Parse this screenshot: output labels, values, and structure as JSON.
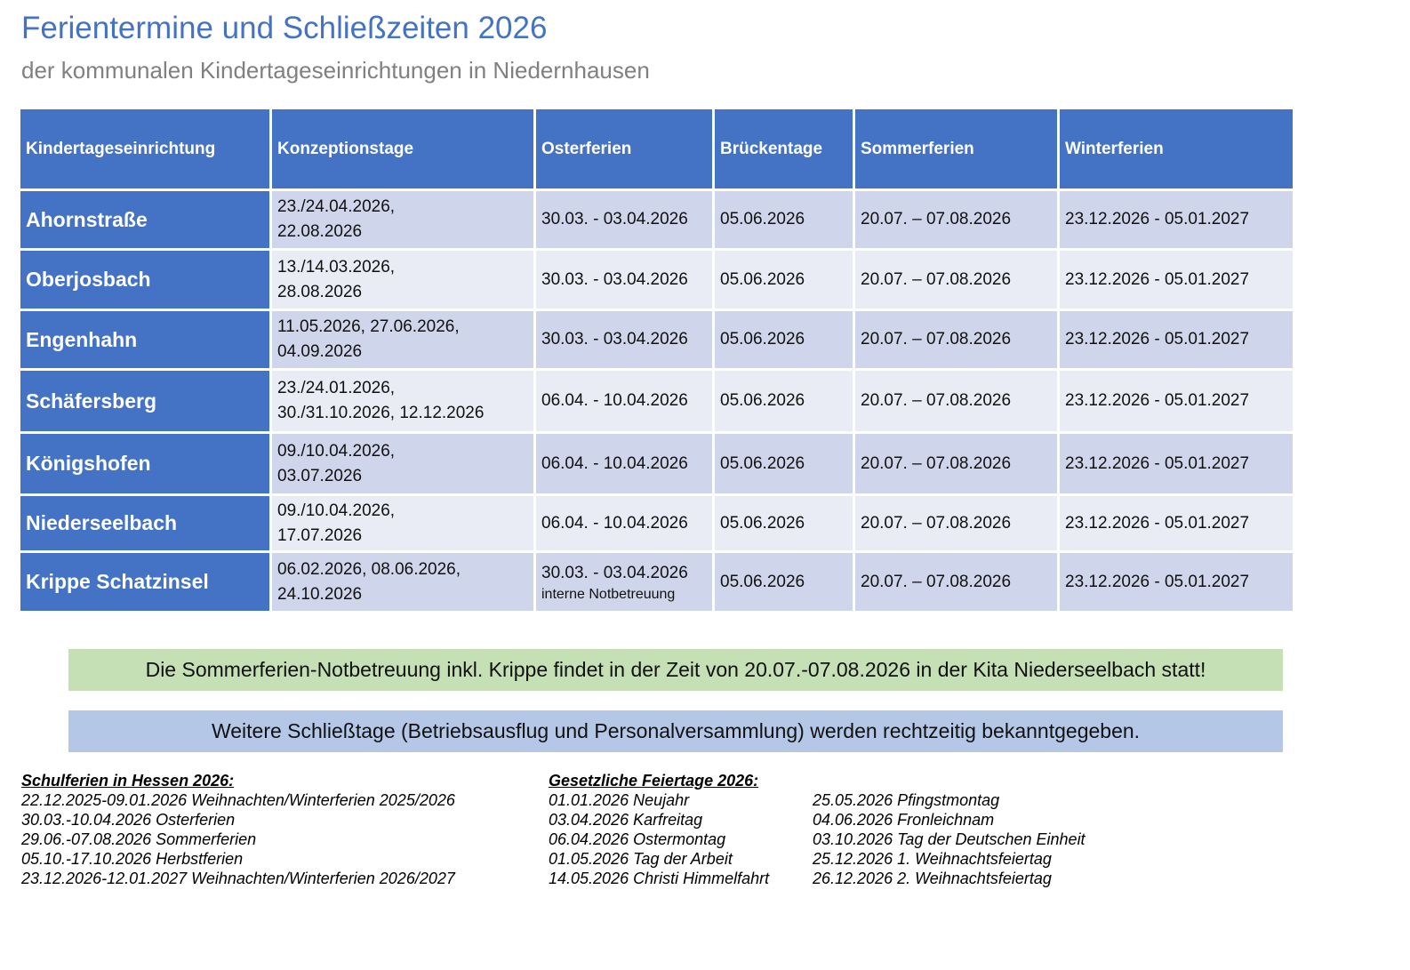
{
  "title": "Ferientermine und Schließzeiten 2026",
  "subtitle": "der kommunalen Kindertageseinrichtungen in Niedernhausen",
  "table": {
    "headers": [
      "Kindertageseinrichtung",
      "Konzeptionstage",
      "Osterferien",
      "Brückentage",
      "Sommerferien",
      "Winterferien"
    ],
    "rows": [
      {
        "name": "Ahornstraße",
        "konzeption_1": "23./24.04.2026,",
        "konzeption_2": "22.08.2026",
        "ostern": "30.03. - 03.04.2026",
        "ostern_note": "",
        "bruecke": "05.06.2026",
        "sommer": "20.07. – 07.08.2026",
        "winter": "23.12.2026 - 05.01.2027"
      },
      {
        "name": "Oberjosbach",
        "konzeption_1": "13./14.03.2026,",
        "konzeption_2": "28.08.2026",
        "ostern": "30.03. - 03.04.2026",
        "ostern_note": "",
        "bruecke": "05.06.2026",
        "sommer": "20.07. – 07.08.2026",
        "winter": "23.12.2026 - 05.01.2027"
      },
      {
        "name": "Engenhahn",
        "konzeption_1": "11.05.2026, 27.06.2026,",
        "konzeption_2": "04.09.2026",
        "ostern": "30.03. - 03.04.2026",
        "ostern_note": "",
        "bruecke": "05.06.2026",
        "sommer": "20.07. – 07.08.2026",
        "winter": "23.12.2026 - 05.01.2027"
      },
      {
        "name": "Schäfersberg",
        "konzeption_1": "23./24.01.2026,",
        "konzeption_2": "30./31.10.2026, 12.12.2026",
        "ostern": "06.04. - 10.04.2026",
        "ostern_note": "",
        "bruecke": "05.06.2026",
        "sommer": "20.07. – 07.08.2026",
        "winter": "23.12.2026 - 05.01.2027"
      },
      {
        "name": "Königshofen",
        "konzeption_1": "09./10.04.2026,",
        "konzeption_2": "03.07.2026",
        "ostern": "06.04. - 10.04.2026",
        "ostern_note": "",
        "bruecke": "05.06.2026",
        "sommer": "20.07. – 07.08.2026",
        "winter": "23.12.2026 - 05.01.2027"
      },
      {
        "name": "Niederseelbach",
        "konzeption_1": "09./10.04.2026,",
        "konzeption_2": "17.07.2026",
        "ostern": "06.04. - 10.04.2026",
        "ostern_note": "",
        "bruecke": "05.06.2026",
        "sommer": "20.07. – 07.08.2026",
        "winter": "23.12.2026 - 05.01.2027"
      },
      {
        "name": "Krippe Schatzinsel",
        "konzeption_1": "06.02.2026, 08.06.2026,",
        "konzeption_2": "24.10.2026",
        "ostern": "30.03. - 03.04.2026",
        "ostern_note": "interne Notbetreuung",
        "bruecke": "05.06.2026",
        "sommer": "20.07. – 07.08.2026",
        "winter": "23.12.2026 - 05.01.2027"
      }
    ]
  },
  "banner_green": "Die Sommerferien-Notbetreuung inkl. Krippe findet in der Zeit von 20.07.-07.08.2026 in der Kita Niederseelbach statt!",
  "banner_blue": "Weitere Schließtage (Betriebsausflug und Personalversammlung) werden rechtzeitig bekanntgegeben.",
  "schulferien": {
    "heading": "Schulferien in Hessen 2026:",
    "items": [
      "22.12.2025-09.01.2026 Weihnachten/Winterferien 2025/2026",
      "30.03.-10.04.2026 Osterferien",
      "29.06.-07.08.2026 Sommerferien",
      "05.10.-17.10.2026 Herbstferien",
      "23.12.2026-12.01.2027 Weihnachten/Winterferien 2026/2027"
    ]
  },
  "feiertage": {
    "heading": "Gesetzliche Feiertage 2026:",
    "col1": [
      "01.01.2026 Neujahr",
      "03.04.2026 Karfreitag",
      "06.04.2026 Ostermontag",
      "01.05.2026 Tag der Arbeit",
      "14.05.2026 Christi Himmelfahrt"
    ],
    "col2": [
      "25.05.2026 Pfingstmontag",
      "04.06.2026 Fronleichnam",
      "03.10.2026 Tag der Deutschen Einheit",
      "25.12.2026 1. Weihnachtsfeiertag",
      "26.12.2026 2. Weihnachtsfeiertag"
    ]
  }
}
